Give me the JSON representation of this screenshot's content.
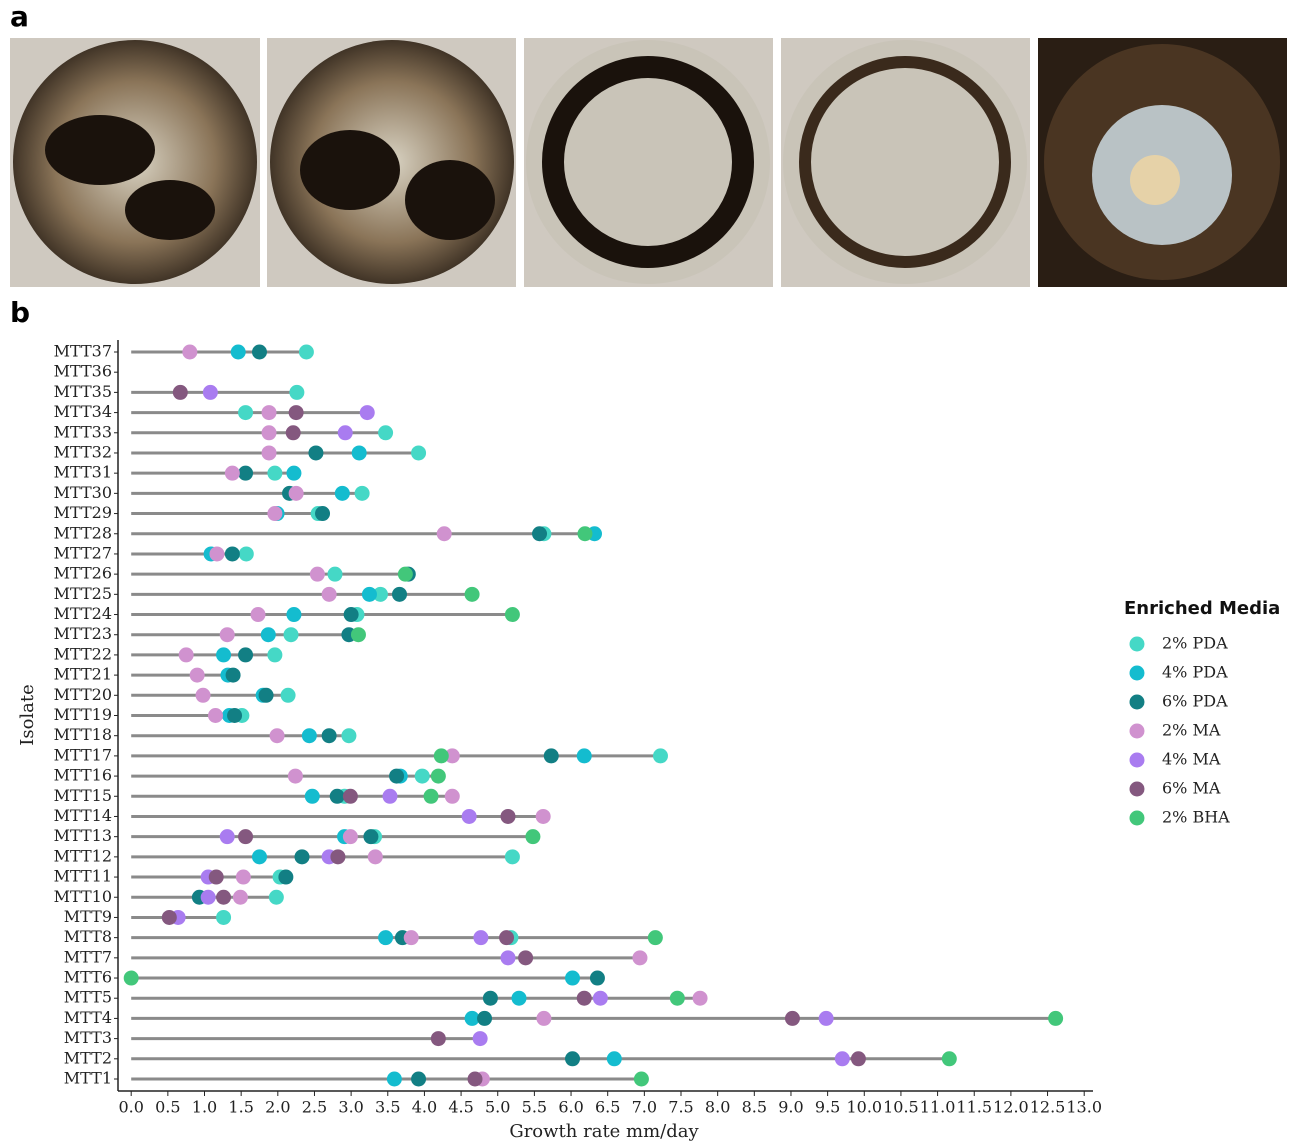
{
  "panel_labels": [
    "a",
    "b"
  ],
  "chart_data": {
    "type": "dot",
    "x_label": "Growth rate mm/day",
    "y_label": "Isolate",
    "legend_title": "Enriched Media",
    "legend": "right",
    "categories": [
      "MTT1",
      "MTT2",
      "MTT3",
      "MTT4",
      "MTT5",
      "MTT6",
      "MTT7",
      "MTT8",
      "MTT9",
      "MTT10",
      "MTT11",
      "MTT12",
      "MTT13",
      "MTT14",
      "MTT15",
      "MTT16",
      "MTT17",
      "MTT18",
      "MTT19",
      "MTT20",
      "MTT21",
      "MTT22",
      "MTT23",
      "MTT24",
      "MTT25",
      "MTT26",
      "MTT27",
      "MTT28",
      "MTT29",
      "MTT30",
      "MTT31",
      "MTT32",
      "MTT33",
      "MTT34",
      "MTT35",
      "MTT36",
      "MTT37"
    ],
    "series": [
      {
        "name": "2% PDA",
        "color": "#45d8c6",
        "values": [
          null,
          null,
          null,
          null,
          null,
          null,
          null,
          5.18,
          1.26,
          1.98,
          2.03,
          5.2,
          3.32,
          null,
          2.91,
          3.97,
          7.22,
          2.97,
          1.51,
          2.14,
          null,
          1.96,
          2.18,
          3.08,
          3.4,
          2.78,
          1.57,
          5.63,
          2.55,
          3.15,
          1.96,
          3.92,
          3.47,
          1.56,
          2.26,
          null,
          2.39
        ]
      },
      {
        "name": "4% PDA",
        "color": "#14bccf",
        "values": [
          3.59,
          6.59,
          null,
          4.65,
          5.29,
          6.02,
          null,
          3.47,
          null,
          null,
          null,
          1.75,
          2.91,
          null,
          2.47,
          3.67,
          6.18,
          2.43,
          1.34,
          1.8,
          1.32,
          1.26,
          1.87,
          2.22,
          3.25,
          null,
          1.09,
          6.32,
          1.99,
          2.88,
          2.22,
          3.11,
          null,
          null,
          null,
          null,
          1.46
        ]
      },
      {
        "name": "6% PDA",
        "color": "#127f84",
        "values": [
          3.92,
          6.02,
          null,
          4.82,
          4.9,
          6.36,
          null,
          3.7,
          null,
          0.93,
          2.11,
          2.33,
          3.27,
          null,
          2.81,
          3.62,
          5.73,
          2.7,
          1.41,
          1.84,
          1.39,
          1.56,
          2.97,
          3.0,
          3.66,
          3.78,
          1.38,
          5.57,
          2.61,
          2.16,
          1.56,
          2.52,
          null,
          null,
          null,
          null,
          1.75
        ]
      },
      {
        "name": "2% MA",
        "color": "#d092cf",
        "values": [
          4.79,
          null,
          null,
          5.63,
          7.76,
          null,
          6.94,
          3.82,
          null,
          1.49,
          1.53,
          3.33,
          2.99,
          5.62,
          4.38,
          2.24,
          4.38,
          1.99,
          1.15,
          0.98,
          0.9,
          0.75,
          1.31,
          1.73,
          2.7,
          2.54,
          1.17,
          4.27,
          1.96,
          2.25,
          1.38,
          1.88,
          1.88,
          1.88,
          null,
          null,
          0.8
        ]
      },
      {
        "name": "4% MA",
        "color": "#a97cf0",
        "values": [
          null,
          9.7,
          4.76,
          9.48,
          6.4,
          null,
          5.14,
          4.77,
          0.64,
          1.05,
          1.05,
          2.7,
          1.31,
          4.61,
          3.53,
          null,
          null,
          null,
          null,
          null,
          null,
          null,
          null,
          null,
          null,
          null,
          null,
          null,
          null,
          null,
          null,
          null,
          2.92,
          3.22,
          1.08,
          null,
          null
        ]
      },
      {
        "name": "6% MA",
        "color": "#84587f",
        "values": [
          4.69,
          9.92,
          4.19,
          9.02,
          6.18,
          null,
          5.38,
          5.12,
          0.52,
          1.26,
          1.16,
          2.82,
          1.56,
          5.14,
          2.99,
          null,
          null,
          null,
          null,
          null,
          null,
          null,
          null,
          null,
          null,
          null,
          null,
          null,
          null,
          null,
          null,
          null,
          2.21,
          2.25,
          0.67,
          null,
          null
        ]
      },
      {
        "name": "2% BHA",
        "color": "#42c77a",
        "values": [
          6.96,
          11.16,
          null,
          12.61,
          7.45,
          0,
          null,
          7.15,
          null,
          null,
          null,
          null,
          5.48,
          null,
          4.09,
          4.19,
          4.23,
          null,
          null,
          null,
          null,
          null,
          3.1,
          5.2,
          4.65,
          3.74,
          null,
          6.19,
          null,
          null,
          null,
          null,
          null,
          null,
          null,
          null,
          null
        ]
      }
    ],
    "xlim": [
      -0.18,
      13.12
    ],
    "xticks": [
      {
        "value": 0,
        "label": "0.0"
      },
      0.5,
      {
        "value": 1,
        "label": "1.0"
      },
      1.5,
      {
        "value": 2,
        "label": "2.0"
      },
      2.5,
      {
        "value": 3,
        "label": "3.0"
      },
      3.5,
      {
        "value": 4,
        "label": "4.0"
      },
      4.5,
      {
        "value": 5,
        "label": "5.0"
      },
      5.5,
      {
        "value": 6,
        "label": "6.0"
      },
      6.5,
      {
        "value": 7,
        "label": "7.0"
      },
      7.5,
      {
        "value": 8,
        "label": "8.0"
      },
      8.5,
      {
        "value": 9,
        "label": "9.0"
      },
      9.5,
      {
        "value": 10,
        "label": "10.0"
      },
      10.5,
      {
        "value": 11,
        "label": "11.0"
      },
      11.5,
      {
        "value": 12,
        "label": "12.0"
      },
      12.5,
      {
        "value": 13,
        "label": "13.0"
      }
    ]
  }
}
